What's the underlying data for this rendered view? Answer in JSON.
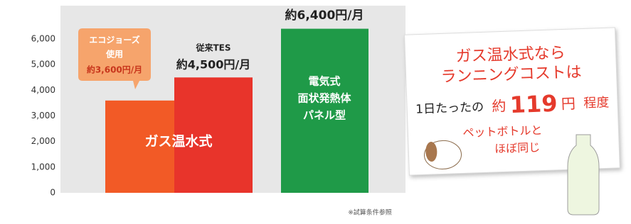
{
  "chart_data": {
    "type": "bar",
    "categories": [
      [
        "エコジョーズ",
        "使用"
      ],
      [
        "従来TES"
      ],
      []
    ],
    "values": [
      3600,
      4500,
      6400
    ],
    "value_labels": [
      "約3,600円/月",
      "約4,500円/月",
      "約6,400円/月"
    ],
    "colors": [
      "#f25a26",
      "#e8342b",
      "#1f9a48"
    ],
    "ylim": [
      0,
      7300
    ],
    "yticks": [
      0,
      {
        "value": 1000,
        "label": "1,000"
      },
      {
        "value": 2000,
        "label": "2,000"
      },
      {
        "value": 3000,
        "label": "3,000"
      },
      {
        "value": 4000,
        "label": "4,000"
      },
      {
        "value": 5000,
        "label": "5,000"
      },
      {
        "value": 6000,
        "label": "6,000"
      }
    ],
    "group_label": "ガス温水式",
    "inner_label": [
      "電気式",
      "面状発熱体",
      "パネル型"
    ],
    "note": "※試算条件参照",
    "callout": {
      "line1": "ガス温水式なら",
      "line2": "ランニングコストは",
      "line3": [
        "1日たったの",
        "約",
        "119",
        "円",
        "程度"
      ],
      "line4": "ペットボトルと",
      "line5": "ほぼ同じ"
    }
  }
}
